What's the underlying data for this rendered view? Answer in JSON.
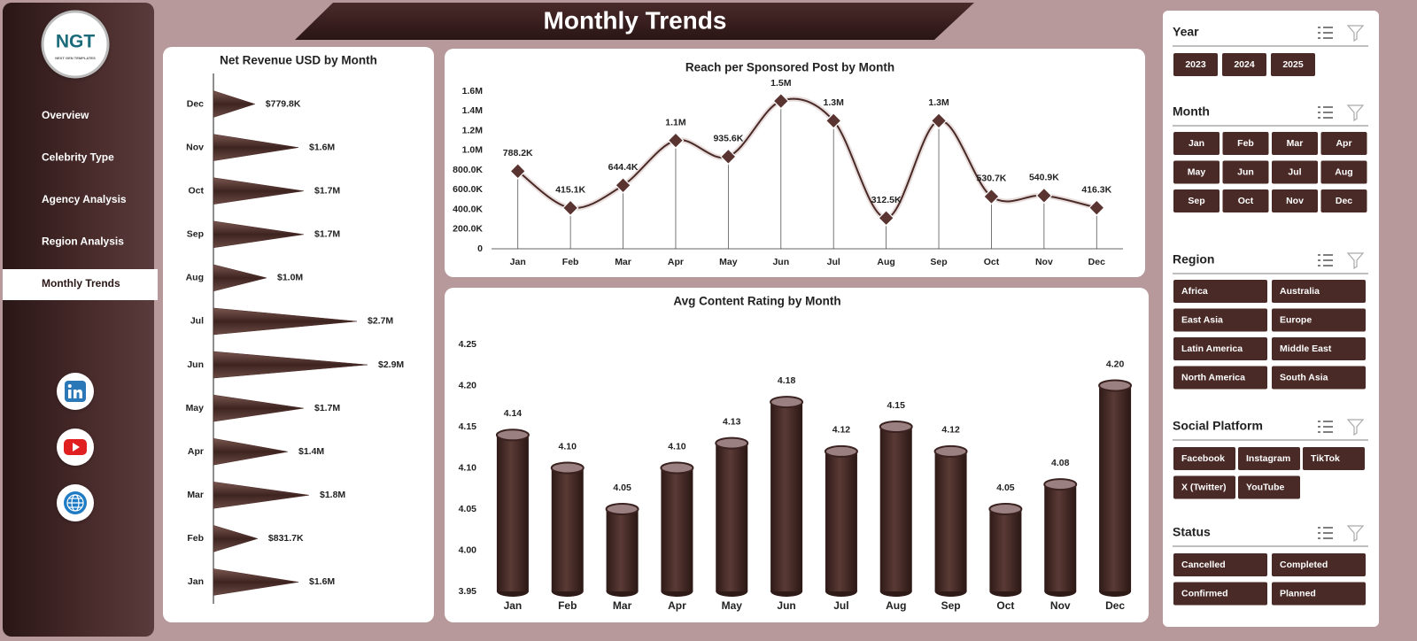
{
  "header": {
    "title": "Monthly Trends"
  },
  "logo": {
    "text": "NGT",
    "subtitle": "NEXT GEN TEMPLATES"
  },
  "nav": [
    "Overview",
    "Celebrity Type",
    "Agency Analysis",
    "Region Analysis",
    "Monthly Trends"
  ],
  "chart_data": [
    {
      "type": "bar",
      "orientation": "horizontal",
      "shape": "triangle",
      "title": "Net Revenue USD by Month",
      "color": "#4a2a26",
      "categories": [
        "Jan",
        "Feb",
        "Mar",
        "Apr",
        "May",
        "Jun",
        "Jul",
        "Aug",
        "Sep",
        "Oct",
        "Nov",
        "Dec"
      ],
      "values": [
        1600000,
        831700,
        1800000,
        1400000,
        1700000,
        2900000,
        2700000,
        1000000,
        1700000,
        1700000,
        1600000,
        779800
      ],
      "value_labels": [
        "$1.6M",
        "$831.7K",
        "$1.8M",
        "$1.4M",
        "$1.7M",
        "$2.9M",
        "$2.7M",
        "$1.0M",
        "$1.7M",
        "$1.7M",
        "$1.6M",
        "$779.8K"
      ]
    },
    {
      "type": "line",
      "smooth": true,
      "drop_lines": true,
      "title": "Reach per Sponsored Post by Month",
      "color": "#4a2a26",
      "categories": [
        "Jan",
        "Feb",
        "Mar",
        "Apr",
        "May",
        "Jun",
        "Jul",
        "Aug",
        "Sep",
        "Oct",
        "Nov",
        "Dec"
      ],
      "values": [
        788200,
        415100,
        644400,
        1100000,
        935600,
        1500000,
        1300000,
        312500,
        1300000,
        530700,
        540900,
        416300
      ],
      "value_labels": [
        "788.2K",
        "415.1K",
        "644.4K",
        "1.1M",
        "935.6K",
        "1.5M",
        "1.3M",
        "312.5K",
        "1.3M",
        "530.7K",
        "540.9K",
        "416.3K"
      ],
      "ylim": [
        0,
        1600000
      ],
      "yticks": [
        0,
        {
          "value": 200000,
          "label": "200.0K"
        },
        {
          "value": 400000,
          "label": "400.0K"
        },
        {
          "value": 600000,
          "label": "600.0K"
        },
        {
          "value": 800000,
          "label": "800.0K"
        },
        {
          "value": 1000000,
          "label": "1.0M"
        },
        {
          "value": 1200000,
          "label": "1.2M"
        },
        {
          "value": 1400000,
          "label": "1.4M"
        },
        {
          "value": 1600000,
          "label": "1.6M"
        }
      ],
      "grid": false
    },
    {
      "type": "bar",
      "orientation": "vertical",
      "shape": "cylinder",
      "title": "Avg Content Rating by Month",
      "color": "#4a2a26",
      "categories": [
        "Jan",
        "Feb",
        "Mar",
        "Apr",
        "May",
        "Jun",
        "Jul",
        "Aug",
        "Sep",
        "Oct",
        "Nov",
        "Dec"
      ],
      "values": [
        4.14,
        4.1,
        4.05,
        4.1,
        4.13,
        4.18,
        4.12,
        4.15,
        4.12,
        4.05,
        4.08,
        4.2
      ],
      "value_labels": [
        "4.14",
        "4.10",
        "4.05",
        "4.10",
        "4.13",
        "4.18",
        "4.12",
        "4.15",
        "4.12",
        "4.05",
        "4.08",
        "4.20"
      ],
      "ylim": [
        3.95,
        4.25
      ],
      "yticks": [
        3.95,
        {
          "value": 4,
          "label": "4.00"
        },
        4.05,
        {
          "value": 4.1,
          "label": "4.10"
        },
        4.15,
        {
          "value": 4.2,
          "label": "4.20"
        },
        4.25
      ],
      "grid": false
    }
  ],
  "slicers": [
    {
      "title": "Year",
      "items": [
        "2023",
        "2024",
        "2025"
      ]
    },
    {
      "title": "Month",
      "items": [
        "Jan",
        "Feb",
        "Mar",
        "Apr",
        "May",
        "Jun",
        "Jul",
        "Aug",
        "Sep",
        "Oct",
        "Nov",
        "Dec"
      ]
    },
    {
      "title": "Region",
      "items": [
        "Africa",
        "Australia",
        "East Asia",
        "Europe",
        "Latin America",
        "Middle East",
        "North America",
        "South Asia"
      ]
    },
    {
      "title": "Social Platform",
      "items": [
        "Facebook",
        "Instagram",
        "TikTok",
        "X (Twitter)",
        "YouTube"
      ]
    },
    {
      "title": "Status",
      "items": [
        "Cancelled",
        "Completed",
        "Confirmed",
        "Planned"
      ]
    }
  ]
}
